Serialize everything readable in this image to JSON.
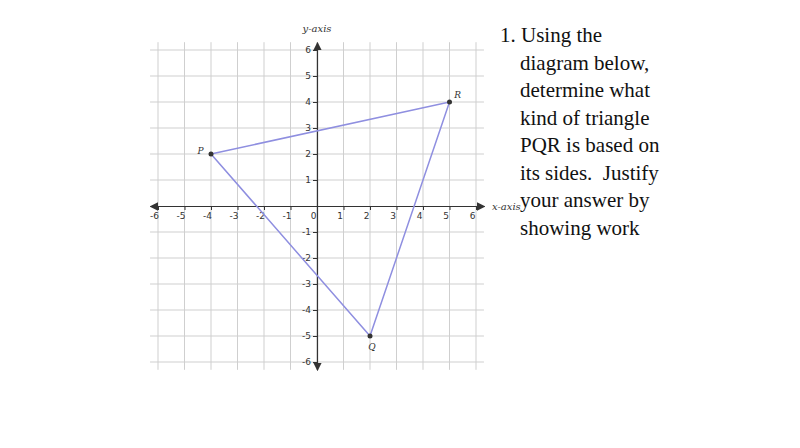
{
  "chart_data": {
    "type": "polygon",
    "xlabel": "x-axis",
    "ylabel": "y-axis",
    "xlim": [
      -6.3,
      6.3
    ],
    "ylim": [
      -6.3,
      6.3
    ],
    "xticks": [
      -6,
      -5,
      -4,
      -3,
      -2,
      -1,
      0,
      1,
      2,
      3,
      4,
      5,
      6
    ],
    "yticks": [
      -6,
      -5,
      -4,
      -3,
      -2,
      -1,
      1,
      2,
      3,
      4,
      5,
      6
    ],
    "grid": true,
    "series": [
      {
        "x": [
          -4,
          2,
          5
        ],
        "values": [
          2,
          -5,
          4
        ],
        "labels": [
          "P",
          "Q",
          "R"
        ],
        "color": "#8f8fe0",
        "marker": "circle"
      }
    ]
  },
  "question_lines": [
    "1. Using the",
    "diagram below,",
    "determine what",
    "kind of triangle",
    "PQR is based on",
    "its sides.  Justify",
    "your answer by",
    "showing work"
  ]
}
